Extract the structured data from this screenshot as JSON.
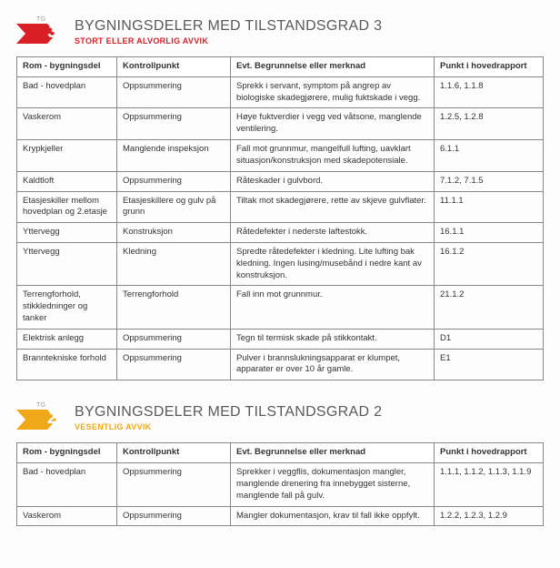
{
  "badge_label": "TG",
  "columns": [
    "Rom - bygningsdel",
    "Kontrollpunkt",
    "Evt. Begrunnelse eller merknad",
    "Punkt i hovedrapport"
  ],
  "sections": [
    {
      "number": "3",
      "badge_color": "#d92027",
      "title": "BYGNINGSDELER MED TILSTANDSGRAD 3",
      "subtitle": "STORT ELLER ALVORLIG AVVIK",
      "subtitle_color": "#d92027",
      "rows": [
        [
          "Bad - hovedplan",
          "Oppsummering",
          "Sprekk i servant, symptom på angrep av biologiske skadegjørere, mulig fuktskade i vegg.",
          "1.1.6, 1.1.8"
        ],
        [
          "Vaskerom",
          "Oppsummering",
          "Høye fuktverdier i vegg ved våtsone, manglende ventilering.",
          "1.2.5, 1.2.8"
        ],
        [
          "Krypkjeller",
          "Manglende inspeksjon",
          "Fall mot grunnmur, mangelfull lufting, uavklart situasjon/konstruksjon med skadepotensiale.",
          "6.1.1"
        ],
        [
          "Kaldtloft",
          "Oppsummering",
          "Råteskader i gulvbord.",
          "7.1.2, 7.1.5"
        ],
        [
          "Etasjeskiller mellom hovedplan og 2.etasje",
          "Etasjeskillere og gulv på grunn",
          "Tiltak mot skadegjørere, rette av skjeve gulvflater.",
          "11.1.1"
        ],
        [
          "Yttervegg",
          "Konstruksjon",
          "Råtedefekter i nederste laftestokk.",
          "16.1.1"
        ],
        [
          "Yttervegg",
          "Kledning",
          "Spredte råtedefekter i kledning. Lite lufting bak kledning. Ingen lusing/musebånd i nedre kant av konstruksjon.",
          "16.1.2"
        ],
        [
          "Terrengforhold, stikkledninger og tanker",
          "Terrengforhold",
          "Fall inn mot grunnmur.",
          "21.1.2"
        ],
        [
          "Elektrisk anlegg",
          "Oppsummering",
          "Tegn til termisk skade på stikkontakt.",
          "D1"
        ],
        [
          "Branntekniske forhold",
          "Oppsummering",
          "Pulver i brannslukningsapparat er klumpet, apparater er over 10 år gamle.",
          "E1"
        ]
      ]
    },
    {
      "number": "2",
      "badge_color": "#f0a818",
      "title": "BYGNINGSDELER MED TILSTANDSGRAD 2",
      "subtitle": "VESENTLIG AVVIK",
      "subtitle_color": "#f0a818",
      "rows": [
        [
          "Bad - hovedplan",
          "Oppsummering",
          "Sprekker i veggflis, dokumentasjon mangler, manglende drenering fra innebygget sisterne, manglende fall på gulv.",
          "1.1.1, 1.1.2, 1.1.3, 1.1.9"
        ],
        [
          "Vaskerom",
          "Oppsummering",
          "Mangler dokumentasjon, krav til fall ikke oppfylt.",
          "1.2.2, 1.2.3, 1.2.9"
        ]
      ]
    }
  ]
}
